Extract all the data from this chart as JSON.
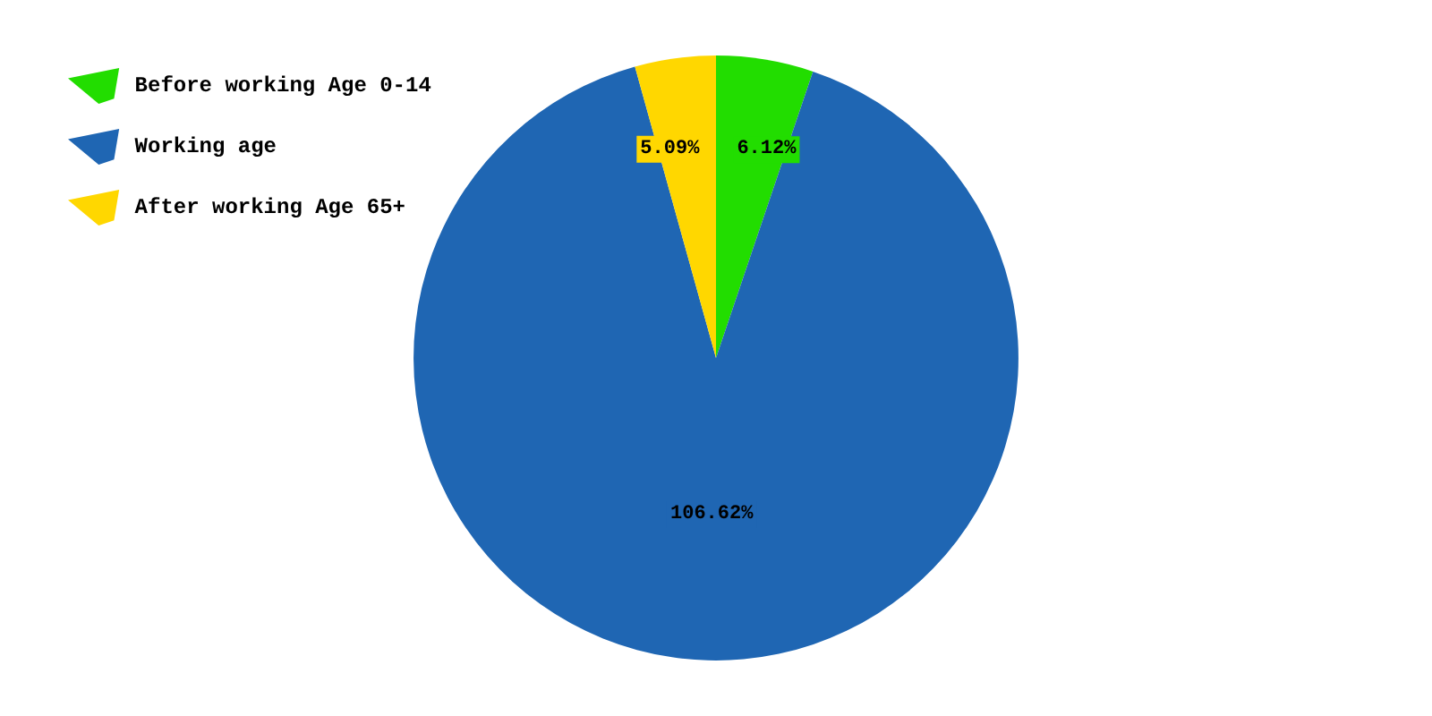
{
  "chart_data": {
    "type": "pie",
    "categories": [
      "Before working Age 0-14",
      "Working age",
      "After working Age 65+"
    ],
    "values": [
      6.12,
      106.62,
      5.09
    ],
    "value_labels": [
      "6.12%",
      "106.62%",
      "5.09%"
    ],
    "colors": [
      "#22dd00",
      "#1f66b3",
      "#ffd700"
    ],
    "legend": "top left"
  }
}
